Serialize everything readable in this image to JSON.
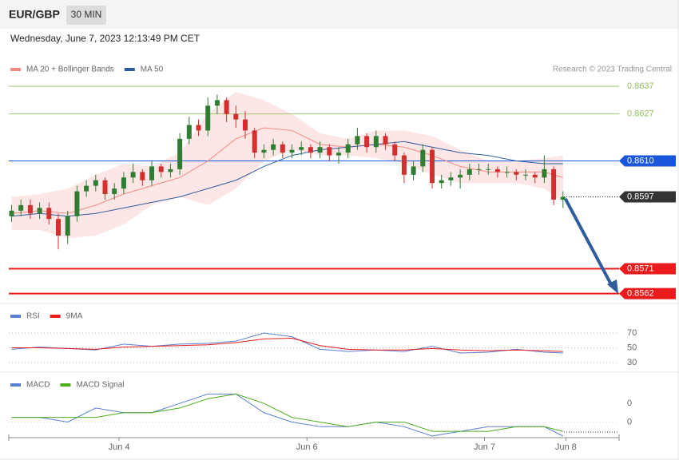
{
  "header": {
    "symbol": "EUR/GBP",
    "interval": "30 MIN",
    "timestamp": "Wednesday, June 7, 2023 12:13:49 PM CET"
  },
  "chart_data": {
    "type": "candlestick",
    "legend": [
      {
        "name": "MA 20 + Bollinger Bands",
        "color": "#f28b82"
      },
      {
        "name": "MA 50",
        "color": "#2f5d9e"
      }
    ],
    "credit": "Research © 2023 Trading Central",
    "xlim": [
      -0.3,
      65
    ],
    "xticks": [
      {
        "value": 11.5,
        "label": "Jun 4"
      },
      {
        "value": 31.6,
        "label": "Jun 6"
      },
      {
        "value": 50.6,
        "label": "Jun 7"
      },
      {
        "value": 59.3,
        "label": "Jun 8"
      }
    ],
    "ylim": [
      0.8559,
      0.8648
    ],
    "up_color": "#2e7d32",
    "down_color": "#d32f2f",
    "candles": [
      {
        "o": 0.859,
        "h": 0.8594,
        "l": 0.8588,
        "c": 0.8592
      },
      {
        "o": 0.8592,
        "h": 0.8596,
        "l": 0.859,
        "c": 0.8594
      },
      {
        "o": 0.8594,
        "h": 0.8596,
        "l": 0.8589,
        "c": 0.8591
      },
      {
        "o": 0.8591,
        "h": 0.8595,
        "l": 0.8589,
        "c": 0.8593
      },
      {
        "o": 0.8593,
        "h": 0.8595,
        "l": 0.8587,
        "c": 0.8589
      },
      {
        "o": 0.8589,
        "h": 0.8591,
        "l": 0.8578,
        "c": 0.8583
      },
      {
        "o": 0.8583,
        "h": 0.8592,
        "l": 0.858,
        "c": 0.859
      },
      {
        "o": 0.859,
        "h": 0.8601,
        "l": 0.8588,
        "c": 0.8599
      },
      {
        "o": 0.8599,
        "h": 0.8603,
        "l": 0.8597,
        "c": 0.8601
      },
      {
        "o": 0.8601,
        "h": 0.8605,
        "l": 0.8599,
        "c": 0.8603
      },
      {
        "o": 0.8603,
        "h": 0.8604,
        "l": 0.8596,
        "c": 0.8598
      },
      {
        "o": 0.8598,
        "h": 0.8602,
        "l": 0.8596,
        "c": 0.86
      },
      {
        "o": 0.86,
        "h": 0.8606,
        "l": 0.8598,
        "c": 0.8604
      },
      {
        "o": 0.8604,
        "h": 0.8609,
        "l": 0.8602,
        "c": 0.8606
      },
      {
        "o": 0.8606,
        "h": 0.8607,
        "l": 0.8601,
        "c": 0.8603
      },
      {
        "o": 0.8603,
        "h": 0.861,
        "l": 0.8601,
        "c": 0.8608
      },
      {
        "o": 0.8608,
        "h": 0.8609,
        "l": 0.8604,
        "c": 0.8606
      },
      {
        "o": 0.8606,
        "h": 0.8609,
        "l": 0.8604,
        "c": 0.8607
      },
      {
        "o": 0.8607,
        "h": 0.862,
        "l": 0.8605,
        "c": 0.8618
      },
      {
        "o": 0.8618,
        "h": 0.8626,
        "l": 0.8616,
        "c": 0.8623
      },
      {
        "o": 0.8623,
        "h": 0.8625,
        "l": 0.8619,
        "c": 0.8621
      },
      {
        "o": 0.8621,
        "h": 0.8633,
        "l": 0.8619,
        "c": 0.863
      },
      {
        "o": 0.863,
        "h": 0.8634,
        "l": 0.8627,
        "c": 0.8632
      },
      {
        "o": 0.8632,
        "h": 0.8633,
        "l": 0.8624,
        "c": 0.8627
      },
      {
        "o": 0.8627,
        "h": 0.863,
        "l": 0.8622,
        "c": 0.8625
      },
      {
        "o": 0.8625,
        "h": 0.8628,
        "l": 0.8618,
        "c": 0.8621
      },
      {
        "o": 0.8621,
        "h": 0.8622,
        "l": 0.8611,
        "c": 0.8613
      },
      {
        "o": 0.8613,
        "h": 0.8616,
        "l": 0.8611,
        "c": 0.8614
      },
      {
        "o": 0.8614,
        "h": 0.8618,
        "l": 0.8612,
        "c": 0.8616
      },
      {
        "o": 0.8616,
        "h": 0.8617,
        "l": 0.8611,
        "c": 0.8613
      },
      {
        "o": 0.8613,
        "h": 0.8616,
        "l": 0.8611,
        "c": 0.8614
      },
      {
        "o": 0.8614,
        "h": 0.8617,
        "l": 0.8612,
        "c": 0.8615
      },
      {
        "o": 0.8615,
        "h": 0.8616,
        "l": 0.8611,
        "c": 0.8613
      },
      {
        "o": 0.8613,
        "h": 0.8617,
        "l": 0.8611,
        "c": 0.8615
      },
      {
        "o": 0.8615,
        "h": 0.8616,
        "l": 0.861,
        "c": 0.8612
      },
      {
        "o": 0.8612,
        "h": 0.8615,
        "l": 0.8609,
        "c": 0.8613
      },
      {
        "o": 0.8613,
        "h": 0.8618,
        "l": 0.8611,
        "c": 0.8616
      },
      {
        "o": 0.8616,
        "h": 0.8622,
        "l": 0.8614,
        "c": 0.8619
      },
      {
        "o": 0.8619,
        "h": 0.862,
        "l": 0.8613,
        "c": 0.8615
      },
      {
        "o": 0.8615,
        "h": 0.8621,
        "l": 0.8613,
        "c": 0.8619
      },
      {
        "o": 0.8619,
        "h": 0.862,
        "l": 0.8614,
        "c": 0.8616
      },
      {
        "o": 0.8616,
        "h": 0.8617,
        "l": 0.861,
        "c": 0.8612
      },
      {
        "o": 0.8612,
        "h": 0.8613,
        "l": 0.8602,
        "c": 0.8605
      },
      {
        "o": 0.8605,
        "h": 0.861,
        "l": 0.8603,
        "c": 0.8608
      },
      {
        "o": 0.8608,
        "h": 0.8616,
        "l": 0.8606,
        "c": 0.8614
      },
      {
        "o": 0.8614,
        "h": 0.8615,
        "l": 0.86,
        "c": 0.8602
      },
      {
        "o": 0.8602,
        "h": 0.8605,
        "l": 0.86,
        "c": 0.8603
      },
      {
        "o": 0.8603,
        "h": 0.8606,
        "l": 0.8601,
        "c": 0.8604
      },
      {
        "o": 0.8604,
        "h": 0.8607,
        "l": 0.86,
        "c": 0.8605
      },
      {
        "o": 0.8605,
        "h": 0.8609,
        "l": 0.8603,
        "c": 0.8607
      },
      {
        "o": 0.8607,
        "h": 0.8609,
        "l": 0.8605,
        "c": 0.8607
      },
      {
        "o": 0.8607,
        "h": 0.8609,
        "l": 0.8605,
        "c": 0.8607
      },
      {
        "o": 0.8607,
        "h": 0.8608,
        "l": 0.8604,
        "c": 0.8606
      },
      {
        "o": 0.8606,
        "h": 0.8608,
        "l": 0.8604,
        "c": 0.8606
      },
      {
        "o": 0.8606,
        "h": 0.8607,
        "l": 0.8603,
        "c": 0.8605
      },
      {
        "o": 0.8605,
        "h": 0.8607,
        "l": 0.8603,
        "c": 0.8605
      },
      {
        "o": 0.8605,
        "h": 0.8606,
        "l": 0.8602,
        "c": 0.8604
      },
      {
        "o": 0.8604,
        "h": 0.8612,
        "l": 0.8602,
        "c": 0.8607
      },
      {
        "o": 0.8607,
        "h": 0.8608,
        "l": 0.8594,
        "c": 0.8596
      },
      {
        "o": 0.8596,
        "h": 0.8599,
        "l": 0.8593,
        "c": 0.8597
      }
    ],
    "indicator_x": [
      0,
      3,
      6,
      9,
      12,
      15,
      18,
      21,
      24,
      27,
      30,
      33,
      36,
      39,
      42,
      45,
      48,
      51,
      54,
      57,
      59
    ],
    "ma20": [
      0.8591,
      0.8592,
      0.8591,
      0.8594,
      0.8598,
      0.8601,
      0.8604,
      0.861,
      0.8618,
      0.8622,
      0.8621,
      0.8616,
      0.8615,
      0.8616,
      0.8615,
      0.8612,
      0.8608,
      0.8606,
      0.8606,
      0.8606,
      0.8604
    ],
    "upper_band": [
      0.8597,
      0.8598,
      0.86,
      0.8605,
      0.8609,
      0.8608,
      0.8613,
      0.8627,
      0.8635,
      0.8632,
      0.8627,
      0.862,
      0.8618,
      0.8621,
      0.8621,
      0.8619,
      0.8614,
      0.861,
      0.861,
      0.8611,
      0.8612
    ],
    "lower_band": [
      0.8585,
      0.8585,
      0.8582,
      0.8583,
      0.8587,
      0.8594,
      0.8597,
      0.8594,
      0.86,
      0.861,
      0.8614,
      0.8612,
      0.8612,
      0.8611,
      0.8609,
      0.8605,
      0.8602,
      0.8602,
      0.8602,
      0.86,
      0.8595
    ],
    "ma50": [
      0.859,
      0.8591,
      0.859,
      0.8591,
      0.8593,
      0.8595,
      0.8597,
      0.86,
      0.8603,
      0.8608,
      0.8612,
      0.8614,
      0.8615,
      0.8616,
      0.8617,
      0.8615,
      0.8613,
      0.8612,
      0.861,
      0.8609,
      0.8609
    ],
    "levels": [
      {
        "value": 0.8637,
        "label": "0.8637",
        "color": "#8fbf5a",
        "style": "text"
      },
      {
        "value": 0.8627,
        "label": "0.8627",
        "color": "#8fbf5a",
        "style": "text"
      },
      {
        "value": 0.861,
        "label": "0.8610",
        "color": "#1a56db",
        "style": "box"
      },
      {
        "value": 0.8597,
        "label": "0.8597",
        "color": "#333333",
        "style": "dotted-box"
      },
      {
        "value": 0.8571,
        "label": "0.8571",
        "color": "#e81c1c",
        "style": "box"
      },
      {
        "value": 0.8562,
        "label": "0.8562",
        "color": "#e81c1c",
        "style": "box"
      }
    ],
    "rsi": {
      "legend": [
        {
          "name": "RSI",
          "color": "#5b7fd6"
        },
        {
          "name": "9MA",
          "color": "#e81c1c"
        }
      ],
      "ylim": [
        20,
        100
      ],
      "yticks": [
        70,
        50,
        30
      ],
      "rsi": [
        48,
        51,
        49,
        47,
        55,
        52,
        55,
        56,
        59,
        70,
        65,
        48,
        45,
        47,
        45,
        52,
        43,
        44,
        48,
        44,
        43
      ],
      "ma9": [
        50,
        50,
        49,
        48,
        51,
        52,
        53,
        54,
        57,
        62,
        63,
        53,
        48,
        47,
        47,
        49,
        47,
        46,
        47,
        46,
        45
      ]
    },
    "macd": {
      "legend": [
        {
          "name": "MACD",
          "color": "#5b7fd6"
        },
        {
          "name": "MACD Signal",
          "color": "#4caf1a"
        }
      ],
      "ylim": [
        -0.0003,
        0.001
      ],
      "yticks": [
        {
          "value": 0.0004,
          "label": "0"
        },
        {
          "value": 0.0,
          "label": "0"
        }
      ],
      "macd": [
        0.0001,
        0.0001,
        0.0,
        0.0003,
        0.0002,
        0.0002,
        0.0004,
        0.0006,
        0.0006,
        0.0002,
        0.0,
        -0.0001,
        -0.0001,
        0.0,
        -0.0001,
        -0.0003,
        -0.0002,
        -0.0001,
        -0.0001,
        -0.0001,
        -0.0003
      ],
      "signal": [
        0.0001,
        0.0001,
        0.0001,
        0.0001,
        0.0002,
        0.0002,
        0.0003,
        0.0005,
        0.0006,
        0.0004,
        0.0001,
        0.0,
        -0.0001,
        0.0,
        0.0,
        -0.0002,
        -0.0002,
        -0.0002,
        -0.0001,
        -0.0001,
        -0.0002
      ]
    }
  }
}
